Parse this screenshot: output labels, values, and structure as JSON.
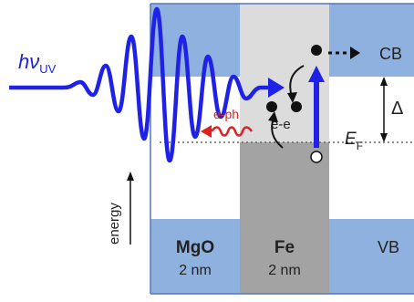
{
  "labels": {
    "photon": "hν",
    "photon_sub": "UV",
    "cb": "CB",
    "vb": "VB",
    "gap": "Δ",
    "fermi": "E",
    "fermi_sub": "F",
    "e_ph": "e-ph",
    "e_e": "e-e",
    "energy": "energy",
    "mgo": "MgO",
    "mgo_thickness": "2 nm",
    "fe": "Fe",
    "fe_thickness": "2 nm"
  },
  "colors": {
    "band_blue": "#8fb1df",
    "band_border": "#5577bb",
    "fe_light": "#dcdcdc",
    "fe_dark": "#a3a3a3",
    "pulse_blue": "#1f22e6",
    "e_ph_red": "#e02020",
    "text": "#222222"
  }
}
